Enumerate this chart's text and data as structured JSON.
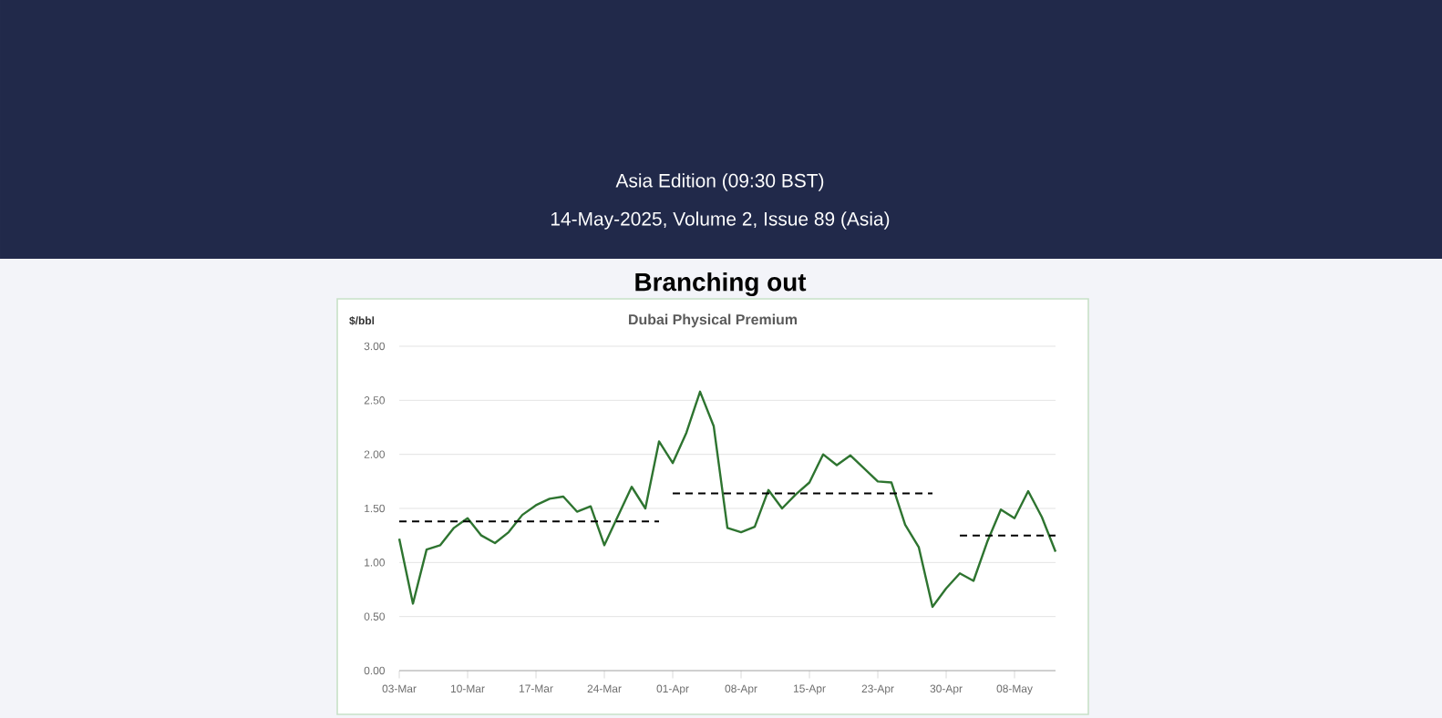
{
  "chart_data": {
    "type": "line",
    "title": "Branching out",
    "subtitle": "Dubai Physical Premium",
    "ylabel": "$/bbl",
    "annotations": [
      "Asia Edition (09:30 BST)",
      "14-May-2025, Volume 2, Issue 89 (Asia)"
    ],
    "categories": [
      "03-Mar",
      null,
      null,
      null,
      null,
      "10-Mar",
      null,
      null,
      null,
      null,
      "17-Mar",
      null,
      null,
      null,
      null,
      "24-Mar",
      null,
      null,
      null,
      null,
      "01-Apr",
      null,
      null,
      null,
      null,
      "08-Apr",
      null,
      null,
      null,
      null,
      "15-Apr",
      null,
      null,
      null,
      null,
      "23-Apr",
      null,
      null,
      null,
      null,
      "30-Apr",
      null,
      null,
      null,
      null,
      "08-May",
      null,
      null,
      null
    ],
    "series": [
      {
        "color": "#2e7430",
        "line_style": "solid",
        "values": [
          1.22,
          0.62,
          1.12,
          1.16,
          1.32,
          1.41,
          1.25,
          1.18,
          1.28,
          1.44,
          1.53,
          1.59,
          1.61,
          1.47,
          1.52,
          1.16,
          1.43,
          1.7,
          1.5,
          2.12,
          1.92,
          2.2,
          2.58,
          2.26,
          1.32,
          1.28,
          1.33,
          1.67,
          1.5,
          1.63,
          1.74,
          2.0,
          1.9,
          1.99,
          1.87,
          1.75,
          1.74,
          1.35,
          1.14,
          0.59,
          0.76,
          0.9,
          0.83,
          1.19,
          1.49,
          1.41,
          1.66,
          1.42,
          1.1
        ]
      },
      {
        "color": "#000000",
        "line_style": "dashed",
        "values": [
          1.38,
          1.38,
          1.38,
          1.38,
          1.38,
          1.38,
          1.38,
          1.38,
          1.38,
          1.38,
          1.38,
          1.38,
          1.38,
          1.38,
          1.38,
          1.38,
          1.38,
          1.38,
          1.38,
          1.38,
          null,
          null,
          null,
          null,
          null,
          null,
          null,
          null,
          null,
          null,
          null,
          null,
          null,
          null,
          null,
          null,
          null,
          null,
          null,
          null,
          null,
          null,
          null,
          null,
          null,
          null,
          null,
          null,
          null
        ]
      },
      {
        "color": "#000000",
        "line_style": "dashed",
        "values": [
          null,
          null,
          null,
          null,
          null,
          null,
          null,
          null,
          null,
          null,
          null,
          null,
          null,
          null,
          null,
          null,
          null,
          null,
          null,
          null,
          1.64,
          1.64,
          1.64,
          1.64,
          1.64,
          1.64,
          1.64,
          1.64,
          1.64,
          1.64,
          1.64,
          1.64,
          1.64,
          1.64,
          1.64,
          1.64,
          1.64,
          1.64,
          1.64,
          1.64,
          null,
          null,
          null,
          null,
          null,
          null,
          null,
          null,
          null
        ]
      },
      {
        "color": "#000000",
        "line_style": "dashed",
        "values": [
          null,
          null,
          null,
          null,
          null,
          null,
          null,
          null,
          null,
          null,
          null,
          null,
          null,
          null,
          null,
          null,
          null,
          null,
          null,
          null,
          null,
          null,
          null,
          null,
          null,
          null,
          null,
          null,
          null,
          null,
          null,
          null,
          null,
          null,
          null,
          null,
          null,
          null,
          null,
          null,
          null,
          1.25,
          1.25,
          1.25,
          1.25,
          1.25,
          1.25,
          1.25,
          1.25
        ]
      }
    ],
    "ylim": [
      0,
      3
    ],
    "yticks": [
      {
        "value": 0,
        "label": "0.00"
      },
      {
        "value": 0.5,
        "label": "0.50"
      },
      {
        "value": 1,
        "label": "1.00"
      },
      {
        "value": 1.5,
        "label": "1.50"
      },
      {
        "value": 2,
        "label": "2.00"
      },
      {
        "value": 2.5,
        "label": "2.50"
      },
      {
        "value": 3,
        "label": "3.00"
      }
    ],
    "grid": "y",
    "marker": "none"
  }
}
